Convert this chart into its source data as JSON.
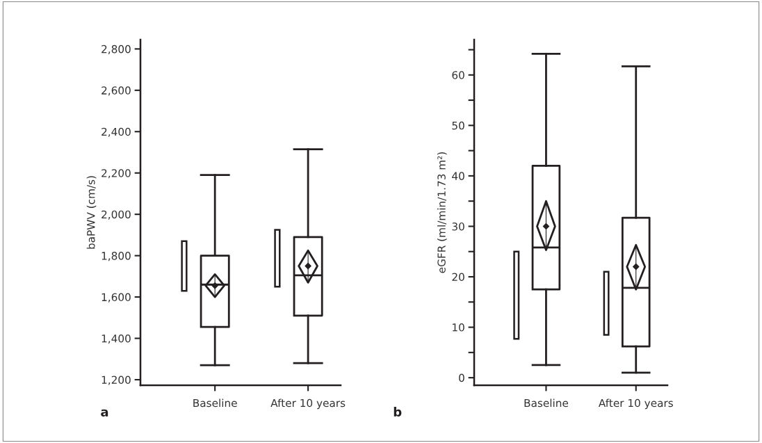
{
  "chart_data": [
    {
      "type": "box",
      "ylabel": "baPWV (cm/s)",
      "categories": [
        "Baseline",
        "After 10 years"
      ],
      "annotations": [
        "a"
      ],
      "ylim": [
        1173,
        2845
      ],
      "yticks": [
        {
          "value": 1200,
          "label": "1,200"
        },
        {
          "value": 1400,
          "label": "1,400"
        },
        {
          "value": 1600,
          "label": "1,600"
        },
        {
          "value": 1800,
          "label": "1,800"
        },
        {
          "value": 2000,
          "label": "2,000"
        },
        {
          "value": 2200,
          "label": "2,200"
        },
        {
          "value": 2400,
          "label": "2,400"
        },
        {
          "value": 2600,
          "label": "2,600"
        },
        {
          "value": 2800,
          "label": "2,800"
        }
      ],
      "grid": false,
      "legend": false,
      "series": [
        {
          "type": "box",
          "color": "#231f20",
          "boxes": [
            {
              "low": 1270,
              "q1": 1455,
              "median": 1660,
              "q3": 1800,
              "high": 2190
            },
            {
              "low": 1280,
              "q1": 1510,
              "median": 1705,
              "q3": 1890,
              "high": 2315
            }
          ]
        },
        {
          "type": "scatter",
          "marker": "diamond",
          "color": "#231f20",
          "x": [
            "Baseline",
            "After 10 years"
          ],
          "values": [
            1655,
            1750
          ],
          "errors": [
            [
              1600,
              1710
            ],
            [
              1670,
              1825
            ]
          ]
        },
        {
          "type": "bar",
          "color": "#231f20",
          "base": [
            1630,
            1650
          ],
          "values": [
            240,
            275
          ]
        }
      ]
    },
    {
      "type": "box",
      "ylabel": "eGFR (ml/min/1.73 m²)",
      "categories": [
        "Baseline",
        "After 10 years"
      ],
      "annotations": [
        "b"
      ],
      "ylim": [
        -1.5,
        67
      ],
      "yticks": [
        0,
        {
          "value": 5,
          "label": null
        },
        10,
        {
          "value": 15,
          "label": null
        },
        20,
        {
          "value": 25,
          "label": null
        },
        30,
        {
          "value": 35,
          "label": null
        },
        40,
        {
          "value": 45,
          "label": null
        },
        50,
        {
          "value": 55,
          "label": null
        },
        60,
        {
          "value": 65,
          "label": null
        }
      ],
      "grid": false,
      "legend": false,
      "series": [
        {
          "type": "box",
          "color": "#231f20",
          "boxes": [
            {
              "low": 2.5,
              "q1": 17.5,
              "median": 25.8,
              "q3": 42,
              "high": 64.2
            },
            {
              "low": 1,
              "q1": 6.2,
              "median": 17.8,
              "q3": 31.7,
              "high": 61.7
            }
          ]
        },
        {
          "type": "scatter",
          "marker": "diamond",
          "color": "#231f20",
          "x": [
            "Baseline",
            "After 10 years"
          ],
          "values": [
            30,
            22
          ],
          "errors": [
            [
              25.3,
              35
            ],
            [
              17.5,
              26.3
            ]
          ]
        },
        {
          "type": "bar",
          "color": "#231f20",
          "base": [
            7.7,
            8.5
          ],
          "values": [
            17.3,
            12.5
          ]
        }
      ]
    }
  ]
}
